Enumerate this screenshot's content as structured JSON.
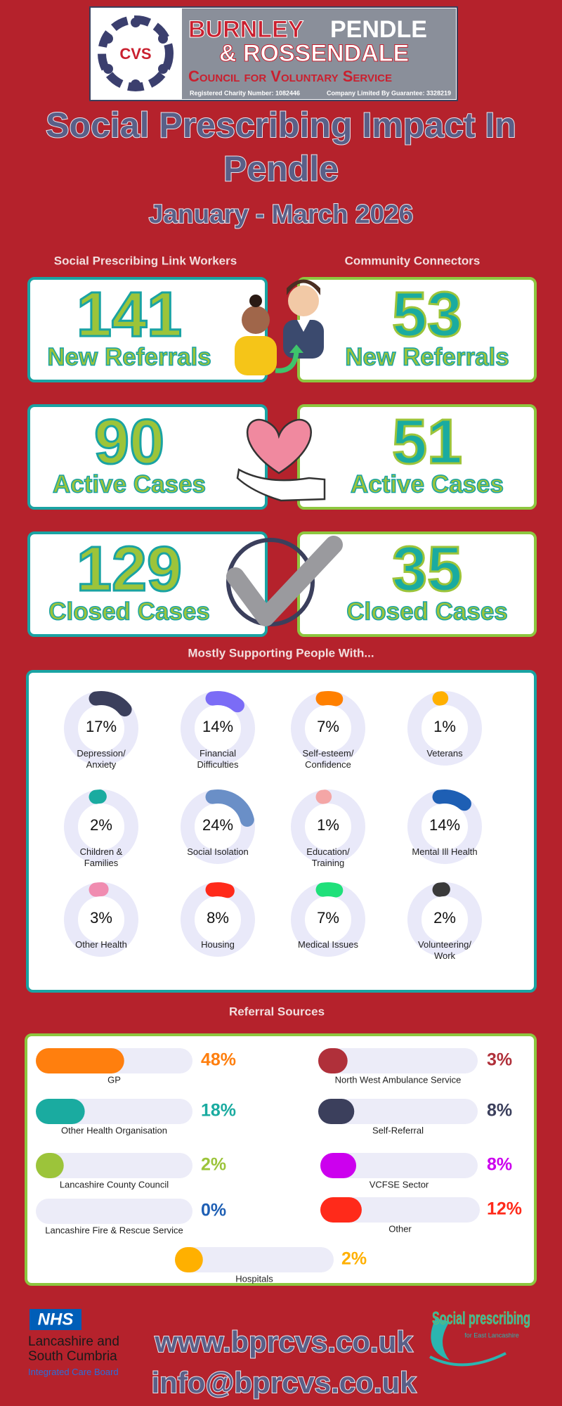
{
  "header": {
    "logo_mark": "CVS",
    "org_burnley": "BURNLEY",
    "org_pendle": "PENDLE",
    "org_rossendale": "& ROSSENDALE",
    "org_council": "Council for Voluntary Service",
    "charity_number": "Registered Charity Number: 1082446",
    "company_number": "Company Limited By Guarantee: 3328219"
  },
  "title_line1": "Social Prescribing Impact In",
  "title_line2": "Pendle",
  "period": "January - March 2026",
  "link_workers": {
    "heading": "Social Prescribing Link Workers",
    "stats": [
      {
        "value": 141,
        "label": "New Referrals"
      },
      {
        "value": 90,
        "label": "Active Cases"
      },
      {
        "value": 129,
        "label": "Closed Cases"
      }
    ]
  },
  "community_connectors": {
    "heading": "Community Connectors",
    "stats": [
      {
        "value": 53,
        "label": "New Referrals"
      },
      {
        "value": 51,
        "label": "Active Cases"
      },
      {
        "value": 35,
        "label": "Closed Cases"
      }
    ]
  },
  "support": {
    "heading": "Mostly Supporting People With...",
    "items": [
      {
        "label": "Depression/ Anxiety",
        "value": 17,
        "value_label": "17%",
        "color": "#3b3f5c"
      },
      {
        "label": "Financial Difficulties",
        "value": 14,
        "value_label": "14%",
        "color": "#7b6cf6"
      },
      {
        "label": "Self-esteem/ Confidence",
        "value": 7,
        "value_label": "7%",
        "color": "#ff8000"
      },
      {
        "label": "Veterans",
        "value": 1,
        "value_label": "1%",
        "color": "#ffb000"
      },
      {
        "label": "Children & Families",
        "value": 2,
        "value_label": "2%",
        "color": "#1aaba0"
      },
      {
        "label": "Social Isolation",
        "value": 24,
        "value_label": "24%",
        "color": "#6a8fc7"
      },
      {
        "label": "Education/ Training",
        "value": 1,
        "value_label": "1%",
        "color": "#f4a6a6"
      },
      {
        "label": "Mental Ill Health",
        "value": 14,
        "value_label": "14%",
        "color": "#1e5fb4"
      },
      {
        "label": "Other Health",
        "value": 3,
        "value_label": "3%",
        "color": "#f08cb0"
      },
      {
        "label": "Housing",
        "value": 8,
        "value_label": "8%",
        "color": "#ff2a1a"
      },
      {
        "label": "Medical Issues",
        "value": 7,
        "value_label": "7%",
        "color": "#1fe07a"
      },
      {
        "label": "Volunteering/ Work",
        "value": 2,
        "value_label": "2%",
        "color": "#3a3a3a"
      }
    ]
  },
  "referrals": {
    "heading": "Referral Sources",
    "sources": [
      {
        "label": "GP",
        "value": 48,
        "value_label": "48%",
        "color": "#ff7f0e"
      },
      {
        "label": "North West Ambulance Service",
        "value": 3,
        "value_label": "3%",
        "color": "#b0303a"
      },
      {
        "label": "Other Health Organisation",
        "value": 18,
        "value_label": "18%",
        "color": "#1aaba0"
      },
      {
        "label": "Self-Referral",
        "value": 8,
        "value_label": "8%",
        "color": "#3b3f5c"
      },
      {
        "label": "Lancashire County Council",
        "value": 2,
        "value_label": "2%",
        "color": "#9cc43a"
      },
      {
        "label": "VCFSE Sector",
        "value": 8,
        "value_label": "8%",
        "color": "#cc00ee"
      },
      {
        "label": "Lancashire Fire & Rescue Service",
        "value": 0,
        "value_label": "0%",
        "color": "#1e5fb4"
      },
      {
        "label": "Other",
        "value": 12,
        "value_label": "12%",
        "color": "#ff2a1a"
      },
      {
        "label": "Hospitals",
        "value": 2,
        "value_label": "2%",
        "color": "#ffb000"
      }
    ]
  },
  "footer": {
    "nhs": "NHS",
    "icb_name": "Lancashire and South Cumbria",
    "icb_sub": "Integrated Care Board",
    "website": "www.bprcvs.co.uk",
    "email": "info@bprcvs.co.uk",
    "sp_logo": "Social prescribing",
    "sp_sub": "for East Lancashire"
  }
}
